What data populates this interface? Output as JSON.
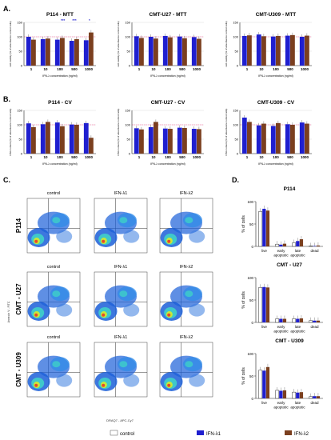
{
  "panel_letters": [
    "A.",
    "B.",
    "C.",
    "D."
  ],
  "colors": {
    "control": "#ffffff",
    "ifn_l1": "#1f1fcf",
    "ifn_l2": "#7b3f1f",
    "pink_ref": "#ff5a96",
    "grid": "#cfcfcf"
  },
  "chart_data": [
    {
      "type": "bar",
      "title": "P114 - MTT",
      "ylabel": "cell viability (% of absorbance control cells)",
      "xlabel": "IFN-λ concentration (ng/ml)",
      "categories": [
        "1",
        "10",
        "100",
        "500",
        "1000"
      ],
      "ylim": [
        0,
        150
      ],
      "yticks": [
        "0",
        "50",
        "100",
        "150"
      ],
      "series": [
        {
          "name": "IFN-λ1",
          "values": [
            100,
            92,
            90,
            86,
            88
          ]
        },
        {
          "name": "IFN-λ2",
          "values": [
            90,
            94,
            96,
            92,
            115
          ]
        }
      ],
      "annotations": [
        "***",
        "***",
        "*"
      ]
    },
    {
      "type": "bar",
      "title": "CMT-U27 - MTT",
      "ylabel": "cell viability (% of absorbance control cells)",
      "xlabel": "IFN-λ concentration (ng/ml)",
      "categories": [
        "1",
        "10",
        "100",
        "500",
        "1000"
      ],
      "ylim": [
        0,
        150
      ],
      "yticks": [
        "0",
        "50",
        "100",
        "150"
      ],
      "series": [
        {
          "name": "IFN-λ1",
          "values": [
            102,
            100,
            103,
            101,
            99
          ]
        },
        {
          "name": "IFN-λ2",
          "values": [
            96,
            94,
            98,
            95,
            93
          ]
        }
      ]
    },
    {
      "type": "bar",
      "title": "CMT-U309 - MTT",
      "ylabel": "cell viability (% of absorbance control cells)",
      "xlabel": "IFN-λ concentration (ng/ml)",
      "categories": [
        "1",
        "10",
        "100",
        "500",
        "1000"
      ],
      "ylim": [
        0,
        150
      ],
      "yticks": [
        "0",
        "50",
        "100",
        "150"
      ],
      "series": [
        {
          "name": "IFN-λ1",
          "values": [
            103,
            108,
            101,
            104,
            100
          ]
        },
        {
          "name": "IFN-λ2",
          "values": [
            105,
            102,
            103,
            106,
            104
          ]
        }
      ]
    },
    {
      "type": "bar",
      "title": "P114 - CV",
      "ylabel": "DNA content (% of absorbance control cells)",
      "xlabel": "IFN-λ concentration (ng/ml)",
      "categories": [
        "1",
        "10",
        "100",
        "500",
        "1000"
      ],
      "ylim": [
        0,
        150
      ],
      "yticks": [
        "0",
        "50",
        "100",
        "150"
      ],
      "series": [
        {
          "name": "IFN-λ1",
          "values": [
            105,
            102,
            108,
            101,
            106
          ]
        },
        {
          "name": "IFN-λ2",
          "values": [
            92,
            110,
            95,
            100,
            55
          ]
        }
      ]
    },
    {
      "type": "bar",
      "title": "CMT-U27 - CV",
      "ylabel": "DNA content (% of absorbance control cells)",
      "xlabel": "IFN-λ concentration (ng/ml)",
      "categories": [
        "1",
        "10",
        "100",
        "500",
        "1000"
      ],
      "ylim": [
        0,
        150
      ],
      "yticks": [
        "0",
        "50",
        "100",
        "150"
      ],
      "series": [
        {
          "name": "IFN-λ1",
          "values": [
            88,
            92,
            87,
            90,
            86
          ]
        },
        {
          "name": "IFN-λ2",
          "values": [
            84,
            110,
            86,
            89,
            85
          ]
        }
      ]
    },
    {
      "type": "bar",
      "title": "CMT-U309 - CV",
      "ylabel": "DNA content (% of absorbance control cells)",
      "xlabel": "IFN-λ concentration (ng/ml)",
      "categories": [
        "1",
        "10",
        "100",
        "500",
        "1000"
      ],
      "ylim": [
        0,
        150
      ],
      "yticks": [
        "0",
        "50",
        "100",
        "150"
      ],
      "series": [
        {
          "name": "IFN-λ1",
          "values": [
            125,
            98,
            96,
            102,
            108
          ]
        },
        {
          "name": "IFN-λ2",
          "values": [
            110,
            104,
            106,
            100,
            104
          ]
        }
      ]
    },
    {
      "type": "bar",
      "title": "P114",
      "ylabel": "% of cells",
      "categories": [
        "live",
        "early apoptotic",
        "late apoptotic",
        "dead"
      ],
      "ylim": [
        0,
        100
      ],
      "yticks": [
        "0",
        "50",
        "100"
      ],
      "series": [
        {
          "name": "control",
          "values": [
            78,
            5,
            8,
            1
          ]
        },
        {
          "name": "IFN-λ1",
          "values": [
            84,
            4,
            12,
            1
          ]
        },
        {
          "name": "IFN-λ2",
          "values": [
            80,
            6,
            16,
            2
          ]
        }
      ]
    },
    {
      "type": "bar",
      "title": "CMT - U27",
      "ylabel": "% of cells",
      "categories": [
        "live",
        "early apoptotic",
        "late apoptotic",
        "dead"
      ],
      "ylim": [
        0,
        100
      ],
      "yticks": [
        "0",
        "50",
        "100"
      ],
      "series": [
        {
          "name": "control",
          "values": [
            78,
            8,
            8,
            4
          ]
        },
        {
          "name": "IFN-λ1",
          "values": [
            79,
            8,
            8,
            4
          ]
        },
        {
          "name": "IFN-λ2",
          "values": [
            78,
            8,
            9,
            4
          ]
        }
      ]
    },
    {
      "type": "bar",
      "title": "CMT - U309",
      "ylabel": "% of cells",
      "categories": [
        "live",
        "early apoptotic",
        "late apoptotic",
        "dead"
      ],
      "ylim": [
        0,
        100
      ],
      "yticks": [
        "0",
        "50",
        "100"
      ],
      "series": [
        {
          "name": "control",
          "values": [
            63,
            18,
            14,
            4
          ]
        },
        {
          "name": "IFN-λ1",
          "values": [
            62,
            17,
            13,
            5
          ]
        },
        {
          "name": "IFN-λ2",
          "values": [
            70,
            18,
            14,
            5
          ]
        }
      ]
    }
  ],
  "flow": {
    "col_titles": [
      "control",
      "IFN-λ1",
      "IFN-λ2"
    ],
    "row_labels": [
      "P114",
      "CMT - U27",
      "CMT - U309"
    ],
    "x_axis_label": "DRAQ7 - APC-Cy7",
    "y_axis_label": "Annexin V - FITC"
  },
  "legend": [
    {
      "name": "control",
      "color": "#ffffff"
    },
    {
      "name": "IFN-λ1",
      "color": "#1f1fcf"
    },
    {
      "name": "IFN-λ2",
      "color": "#7b3f1f"
    }
  ]
}
